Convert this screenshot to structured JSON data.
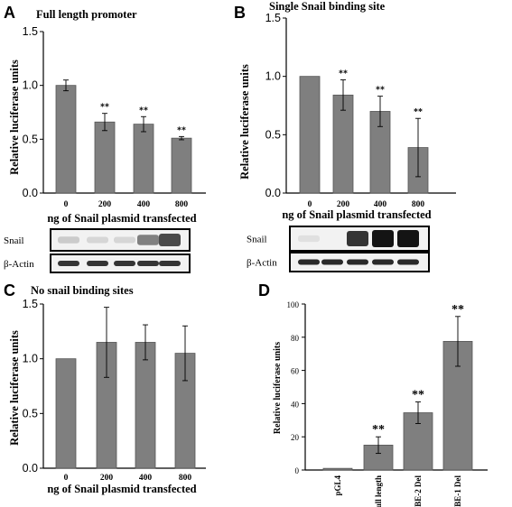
{
  "chart_data": [
    {
      "id": "A",
      "type": "bar",
      "panel_label": "A",
      "title": "Full length promoter",
      "categories": [
        "0",
        "200",
        "400",
        "800"
      ],
      "values": [
        1.0,
        0.66,
        0.64,
        0.51
      ],
      "errors": [
        0.05,
        0.08,
        0.07,
        0.015
      ],
      "significance": [
        "",
        "**",
        "**",
        "**"
      ],
      "ylabel": "Relative luciferase units",
      "xlabel": "ng of Snail plasmid transfected",
      "ylim": [
        0,
        1.5
      ],
      "yticks": [
        "0.0",
        "0.5",
        "1.0",
        "1.5"
      ],
      "blot": {
        "labels": [
          "Snail",
          "β-Actin"
        ],
        "snail_intensity": [
          0.15,
          0.1,
          0.1,
          0.5,
          0.75
        ],
        "actin_intensity": [
          0.85,
          0.85,
          0.85,
          0.85,
          0.85
        ]
      },
      "bar_color": "#7f7f7f"
    },
    {
      "id": "B",
      "type": "bar",
      "panel_label": "B",
      "title": "Single Snail binding site",
      "categories": [
        "0",
        "200",
        "400",
        "800"
      ],
      "values": [
        1.0,
        0.84,
        0.7,
        0.39
      ],
      "errors": [
        0.0,
        0.13,
        0.13,
        0.25
      ],
      "significance": [
        "",
        "**",
        "**",
        "**"
      ],
      "ylabel": "Relative luciferase units",
      "xlabel": "ng of Snail plasmid transfected",
      "ylim": [
        0,
        1.5
      ],
      "yticks": [
        "0.0",
        "0.5",
        "1.0",
        "1.5"
      ],
      "blot": {
        "labels": [
          "Snail",
          "β-Actin"
        ],
        "snail_intensity": [
          0.05,
          0.0,
          0.85,
          1.0,
          1.0
        ],
        "actin_intensity": [
          0.9,
          0.9,
          0.9,
          0.9,
          0.9
        ]
      },
      "bar_color": "#7f7f7f"
    },
    {
      "id": "C",
      "type": "bar",
      "panel_label": "C",
      "title": "No snail binding sites",
      "categories": [
        "0",
        "200",
        "400",
        "800"
      ],
      "values": [
        1.0,
        1.15,
        1.15,
        1.05
      ],
      "errors": [
        0.0,
        0.32,
        0.16,
        0.25
      ],
      "significance": [
        "",
        "",
        "",
        ""
      ],
      "ylabel": "Relative luciferase units",
      "xlabel": "ng of Snail plasmid transfected",
      "ylim": [
        0,
        1.5
      ],
      "yticks": [
        "0.0",
        "0.5",
        "1.0",
        "1.5"
      ],
      "bar_color": "#7f7f7f"
    },
    {
      "id": "D",
      "type": "bar",
      "panel_label": "D",
      "title": "",
      "categories": [
        "pGL4",
        "Full length",
        "SBE-2 Del",
        "SBE-1 Del"
      ],
      "values": [
        1,
        15,
        34.5,
        77.5
      ],
      "errors": [
        0,
        5,
        6.5,
        15
      ],
      "significance": [
        "",
        "**",
        "**",
        "**"
      ],
      "ylabel": "Relative luciferase units",
      "xlabel": "",
      "ylim": [
        0,
        100
      ],
      "yticks": [
        "0",
        "20",
        "40",
        "60",
        "80",
        "100"
      ],
      "bar_color": "#7f7f7f"
    }
  ]
}
